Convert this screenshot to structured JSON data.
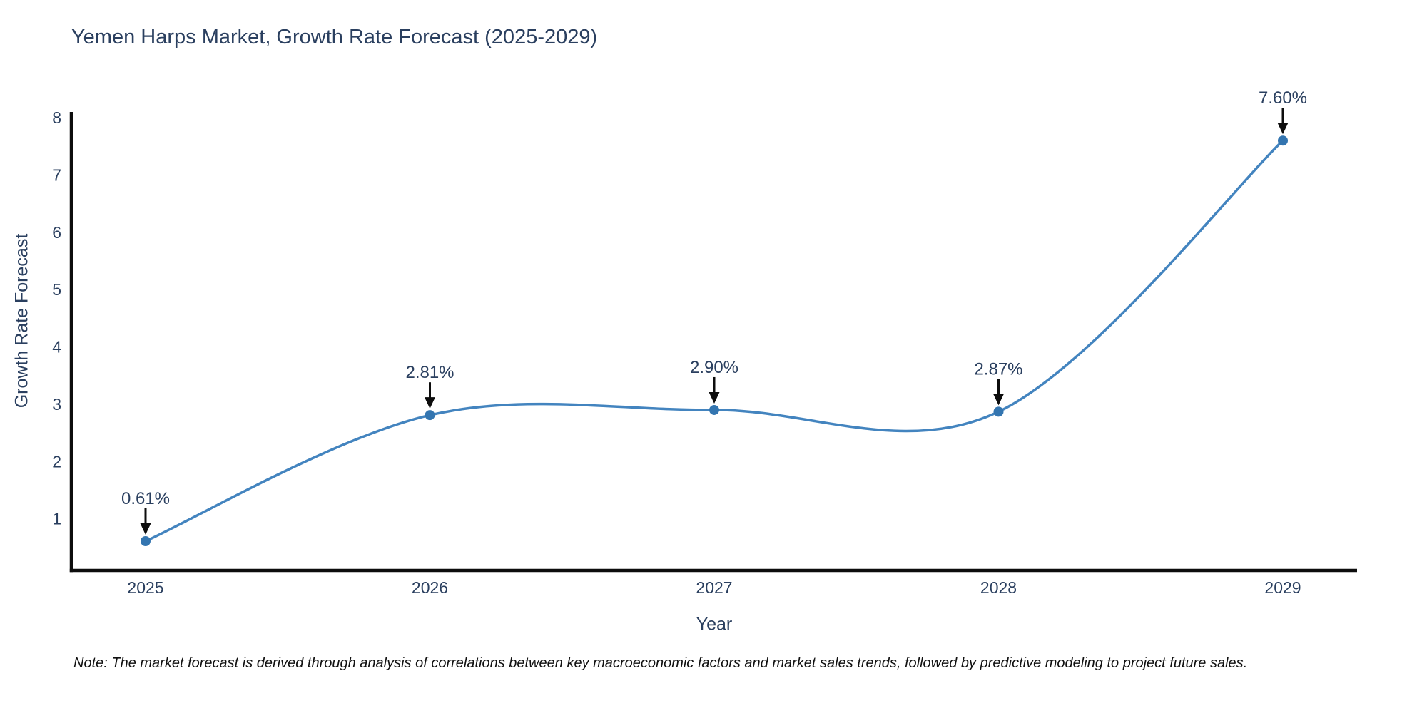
{
  "chart_data": {
    "type": "line",
    "title": "Yemen Harps Market, Growth Rate Forecast (2025-2029)",
    "xlabel": "Year",
    "ylabel": "Growth Rate Forecast",
    "note": "Note: The market forecast is derived through analysis of correlations between key macroeconomic factors and market sales trends, followed by predictive modeling to project future sales.",
    "categories": [
      "2025",
      "2026",
      "2027",
      "2028",
      "2029"
    ],
    "series": [
      {
        "name": "Growth Rate Forecast",
        "values": [
          0.61,
          2.81,
          2.9,
          2.87,
          7.6
        ],
        "point_labels": [
          "0.61%",
          "2.81%",
          "2.90%",
          "2.87%",
          "7.60%"
        ]
      }
    ],
    "ylim": [
      0.1,
      8.1
    ],
    "yticks": [
      1,
      2,
      3,
      4,
      5,
      6,
      7,
      8
    ],
    "grid": false,
    "legend": false,
    "smooth": true,
    "colors": {
      "line": "#4384bf",
      "marker": "#3375b0",
      "axis": "#0d0d0d",
      "text": "#2a3f5f",
      "annotation_arrow": "#0d0d0d",
      "note_text": "#111111",
      "background": "#ffffff"
    }
  }
}
